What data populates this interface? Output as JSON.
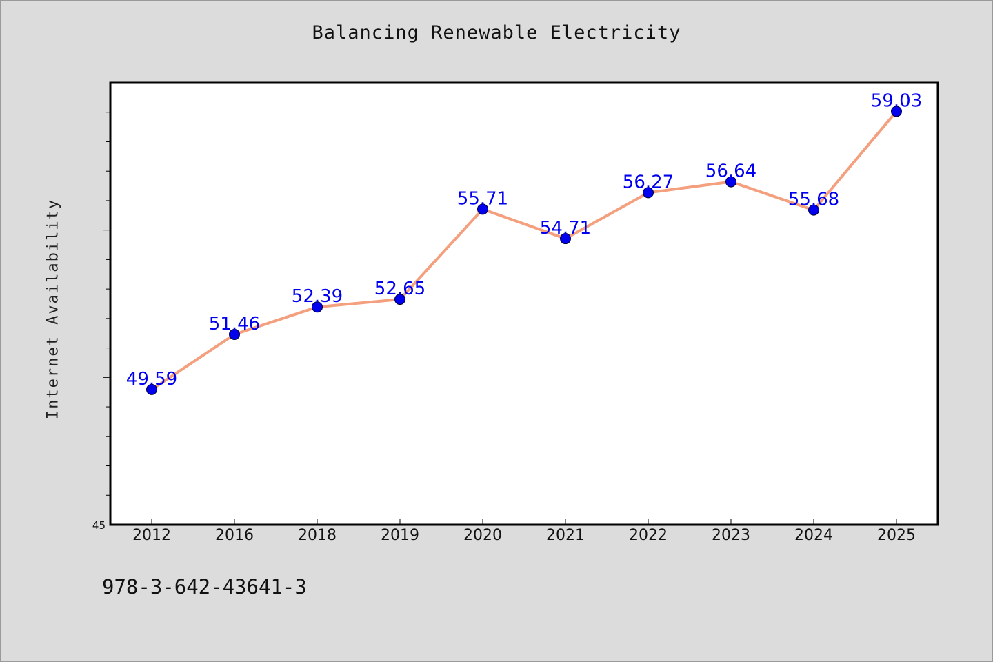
{
  "chart_data": {
    "type": "line",
    "title": "Balancing Renewable Electricity",
    "xlabel": "",
    "ylabel": "Internet Availability",
    "categories": [
      "2012",
      "2016",
      "2018",
      "2019",
      "2020",
      "2021",
      "2022",
      "2023",
      "2024",
      "2025"
    ],
    "series": [
      {
        "values": [
          49.59,
          51.46,
          52.39,
          52.65,
          55.71,
          54.71,
          56.27,
          56.64,
          55.68,
          59.03
        ]
      }
    ],
    "ylim": [
      45,
      60
    ],
    "ytick_labels": [
      "45"
    ],
    "grid": false,
    "colors": {
      "line": "#f4a07e",
      "marker": "#0000ee",
      "data_label": "#0000ee",
      "plot_background": "#ffffff",
      "page_background": "#dcdcdc"
    }
  },
  "footer": {
    "code": "978-3-642-43641-3"
  }
}
